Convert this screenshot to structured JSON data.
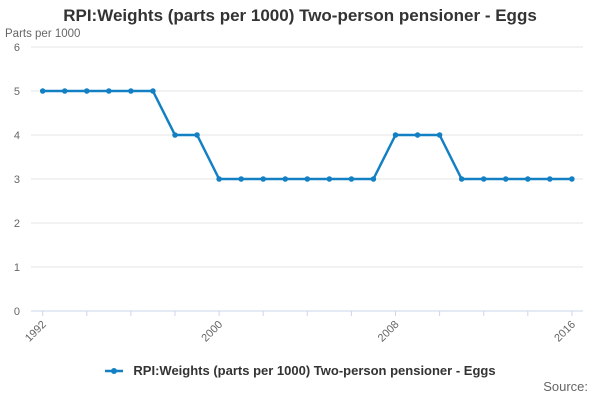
{
  "title": "RPI:Weights (parts per 1000) Two-person pensioner - Eggs",
  "y_axis_unit": "Parts per 1000",
  "source_label": "Source:",
  "legend": {
    "label": "RPI:Weights (parts per 1000) Two-person pensioner - Eggs"
  },
  "colors": {
    "line": "#1380c3",
    "grid": "#e6e6e6",
    "axis": "#ccd6eb",
    "tick_text": "#666666",
    "title_text": "#333333",
    "legend_text": "#333333",
    "source_text": "#666666"
  },
  "chart_data": {
    "type": "line",
    "title": "RPI:Weights (parts per 1000) Two-person pensioner - Eggs",
    "xlabel": "",
    "ylabel": "Parts per 1000",
    "x": [
      1992,
      1993,
      1994,
      1995,
      1996,
      1997,
      1998,
      1999,
      2000,
      2001,
      2002,
      2003,
      2004,
      2005,
      2006,
      2007,
      2008,
      2009,
      2010,
      2011,
      2012,
      2013,
      2014,
      2015,
      2016
    ],
    "series": [
      {
        "name": "RPI:Weights (parts per 1000) Two-person pensioner - Eggs",
        "color": "#1380c3",
        "values": [
          5,
          5,
          5,
          5,
          5,
          5,
          4,
          4,
          3,
          3,
          3,
          3,
          3,
          3,
          3,
          3,
          4,
          4,
          4,
          3,
          3,
          3,
          3,
          3,
          3
        ]
      }
    ],
    "ylim": [
      0,
      6
    ],
    "y_ticks": [
      0,
      1,
      2,
      3,
      4,
      5,
      6
    ],
    "x_tick_interval": 2,
    "x_labeled_ticks": [
      1992,
      2000,
      2008,
      2016
    ],
    "grid": "horizontal",
    "legend_position": "bottom",
    "marker": "circle"
  }
}
